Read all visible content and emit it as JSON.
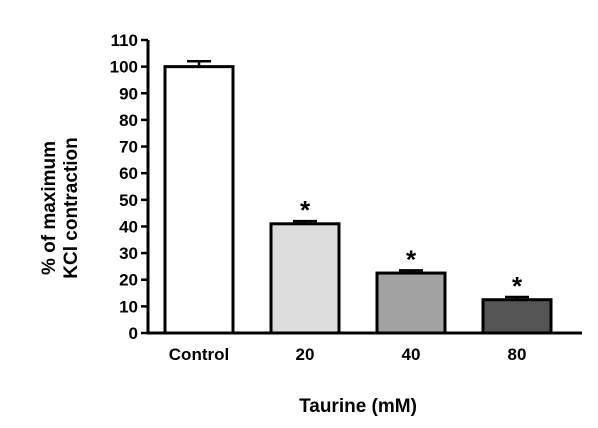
{
  "chart_data": {
    "type": "bar",
    "title": "",
    "xlabel": "Taurine (mM)",
    "ylabel_lines": [
      "% of maximum",
      "KCl contraction"
    ],
    "categories": [
      "Control",
      "20",
      "40",
      "80"
    ],
    "values": [
      100,
      41,
      22.5,
      12.5
    ],
    "errors": [
      2,
      1,
      1,
      1
    ],
    "significance": [
      "",
      "*",
      "*",
      "*"
    ],
    "bar_colors": [
      "#ffffff",
      "#dcdcdc",
      "#a3a3a3",
      "#555555"
    ],
    "ylim": [
      0,
      110
    ],
    "yticks": [
      0,
      10,
      20,
      30,
      40,
      50,
      60,
      70,
      80,
      90,
      100,
      110
    ],
    "grid": false
  }
}
